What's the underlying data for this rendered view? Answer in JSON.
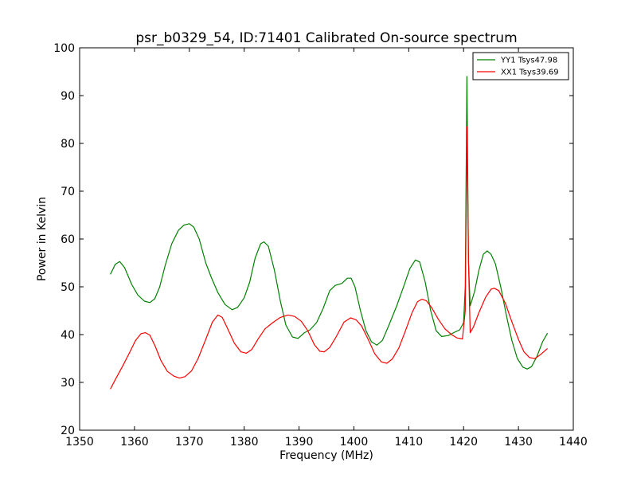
{
  "chart_data": {
    "type": "line",
    "title": "psr_b0329_54, ID:71401 Calibrated On-source spectrum",
    "xlabel": "Frequency (MHz)",
    "ylabel": "Power in Kelvin",
    "xlim": [
      1350,
      1440
    ],
    "ylim": [
      20,
      100
    ],
    "xticks": [
      1350,
      1360,
      1370,
      1380,
      1390,
      1400,
      1410,
      1420,
      1430,
      1440
    ],
    "yticks": [
      20,
      30,
      40,
      50,
      60,
      70,
      80,
      90,
      100
    ],
    "grid": false,
    "legend_position": "top-right",
    "series": [
      {
        "name": "YY1 Tsys47.98",
        "color": "#008000",
        "points": [
          [
            1355.6,
            52.6
          ],
          [
            1356.5,
            54.7
          ],
          [
            1357.3,
            55.3
          ],
          [
            1358.2,
            54.0
          ],
          [
            1359.5,
            50.5
          ],
          [
            1360.6,
            48.3
          ],
          [
            1361.8,
            47.0
          ],
          [
            1362.8,
            46.7
          ],
          [
            1363.7,
            47.5
          ],
          [
            1364.6,
            50.0
          ],
          [
            1365.6,
            54.5
          ],
          [
            1366.8,
            59.0
          ],
          [
            1368.0,
            61.8
          ],
          [
            1369.0,
            62.9
          ],
          [
            1370.0,
            63.2
          ],
          [
            1370.8,
            62.5
          ],
          [
            1371.8,
            60.0
          ],
          [
            1373.0,
            55.0
          ],
          [
            1374.0,
            52.0
          ],
          [
            1375.2,
            48.8
          ],
          [
            1376.5,
            46.3
          ],
          [
            1377.8,
            45.2
          ],
          [
            1378.8,
            45.7
          ],
          [
            1380.0,
            47.7
          ],
          [
            1381.0,
            51.0
          ],
          [
            1382.0,
            56.0
          ],
          [
            1383.0,
            59.0
          ],
          [
            1383.6,
            59.4
          ],
          [
            1384.4,
            58.5
          ],
          [
            1385.5,
            53.5
          ],
          [
            1386.6,
            47.0
          ],
          [
            1387.6,
            42.0
          ],
          [
            1388.8,
            39.5
          ],
          [
            1389.8,
            39.2
          ],
          [
            1391.0,
            40.4
          ],
          [
            1392.0,
            41.0
          ],
          [
            1393.2,
            42.5
          ],
          [
            1394.4,
            45.5
          ],
          [
            1395.6,
            49.2
          ],
          [
            1396.6,
            50.3
          ],
          [
            1397.8,
            50.7
          ],
          [
            1398.8,
            51.8
          ],
          [
            1399.5,
            51.8
          ],
          [
            1400.2,
            50.0
          ],
          [
            1401.2,
            45.0
          ],
          [
            1402.2,
            40.8
          ],
          [
            1403.2,
            38.5
          ],
          [
            1404.2,
            37.8
          ],
          [
            1405.2,
            38.8
          ],
          [
            1406.4,
            42.0
          ],
          [
            1407.8,
            46.0
          ],
          [
            1409.0,
            49.8
          ],
          [
            1410.2,
            53.8
          ],
          [
            1411.2,
            55.6
          ],
          [
            1412.0,
            55.2
          ],
          [
            1413.0,
            51.0
          ],
          [
            1414.0,
            45.0
          ],
          [
            1415.0,
            40.8
          ],
          [
            1416.0,
            39.6
          ],
          [
            1417.2,
            39.8
          ],
          [
            1418.2,
            40.4
          ],
          [
            1419.3,
            41.0
          ],
          [
            1420.0,
            42.5
          ],
          [
            1420.3,
            50.0
          ],
          [
            1420.6,
            94.0
          ],
          [
            1420.9,
            55.0
          ],
          [
            1421.2,
            46.0
          ],
          [
            1422.0,
            49.0
          ],
          [
            1422.8,
            53.5
          ],
          [
            1423.6,
            56.8
          ],
          [
            1424.3,
            57.5
          ],
          [
            1425.0,
            56.8
          ],
          [
            1425.8,
            54.8
          ],
          [
            1426.8,
            49.8
          ],
          [
            1427.8,
            44.0
          ],
          [
            1428.8,
            38.8
          ],
          [
            1429.8,
            35.0
          ],
          [
            1430.8,
            33.2
          ],
          [
            1431.6,
            32.8
          ],
          [
            1432.4,
            33.3
          ],
          [
            1433.4,
            35.5
          ],
          [
            1434.4,
            38.5
          ],
          [
            1435.3,
            40.3
          ]
        ]
      },
      {
        "name": "XX1 Tsys39.69",
        "color": "#ff0000",
        "points": [
          [
            1355.6,
            28.6
          ],
          [
            1356.6,
            30.8
          ],
          [
            1357.8,
            33.3
          ],
          [
            1359.0,
            36.0
          ],
          [
            1360.2,
            38.8
          ],
          [
            1361.2,
            40.2
          ],
          [
            1362.0,
            40.4
          ],
          [
            1362.8,
            39.9
          ],
          [
            1363.8,
            37.5
          ],
          [
            1364.8,
            34.6
          ],
          [
            1366.0,
            32.3
          ],
          [
            1367.2,
            31.3
          ],
          [
            1368.2,
            30.9
          ],
          [
            1369.2,
            31.2
          ],
          [
            1370.4,
            32.4
          ],
          [
            1371.6,
            35.0
          ],
          [
            1373.0,
            39.0
          ],
          [
            1374.2,
            42.6
          ],
          [
            1375.2,
            44.1
          ],
          [
            1376.0,
            43.6
          ],
          [
            1377.0,
            41.2
          ],
          [
            1378.2,
            38.2
          ],
          [
            1379.4,
            36.4
          ],
          [
            1380.4,
            36.1
          ],
          [
            1381.4,
            36.9
          ],
          [
            1382.6,
            39.2
          ],
          [
            1383.8,
            41.2
          ],
          [
            1385.2,
            42.5
          ],
          [
            1386.6,
            43.6
          ],
          [
            1388.0,
            44.1
          ],
          [
            1389.2,
            43.8
          ],
          [
            1390.4,
            42.8
          ],
          [
            1391.6,
            40.8
          ],
          [
            1392.8,
            37.9
          ],
          [
            1393.8,
            36.5
          ],
          [
            1394.6,
            36.4
          ],
          [
            1395.6,
            37.3
          ],
          [
            1396.8,
            39.6
          ],
          [
            1398.2,
            42.6
          ],
          [
            1399.4,
            43.5
          ],
          [
            1400.4,
            43.1
          ],
          [
            1401.4,
            41.8
          ],
          [
            1402.6,
            39.0
          ],
          [
            1403.8,
            36.0
          ],
          [
            1405.0,
            34.3
          ],
          [
            1406.0,
            34.0
          ],
          [
            1407.0,
            34.9
          ],
          [
            1408.2,
            37.2
          ],
          [
            1409.4,
            40.8
          ],
          [
            1410.6,
            44.6
          ],
          [
            1411.6,
            46.9
          ],
          [
            1412.4,
            47.4
          ],
          [
            1413.2,
            47.1
          ],
          [
            1414.2,
            45.6
          ],
          [
            1415.4,
            43.2
          ],
          [
            1416.6,
            41.2
          ],
          [
            1417.8,
            40.0
          ],
          [
            1418.8,
            39.3
          ],
          [
            1419.8,
            39.1
          ],
          [
            1420.3,
            45.0
          ],
          [
            1420.6,
            83.5
          ],
          [
            1420.9,
            55.0
          ],
          [
            1421.2,
            40.4
          ],
          [
            1421.8,
            41.6
          ],
          [
            1422.8,
            44.6
          ],
          [
            1424.0,
            47.8
          ],
          [
            1425.0,
            49.5
          ],
          [
            1425.6,
            49.7
          ],
          [
            1426.4,
            49.2
          ],
          [
            1427.6,
            46.6
          ],
          [
            1428.8,
            42.7
          ],
          [
            1430.0,
            39.0
          ],
          [
            1431.0,
            36.4
          ],
          [
            1432.0,
            35.2
          ],
          [
            1433.0,
            35.0
          ],
          [
            1434.0,
            35.8
          ],
          [
            1435.3,
            37.1
          ]
        ]
      }
    ]
  }
}
